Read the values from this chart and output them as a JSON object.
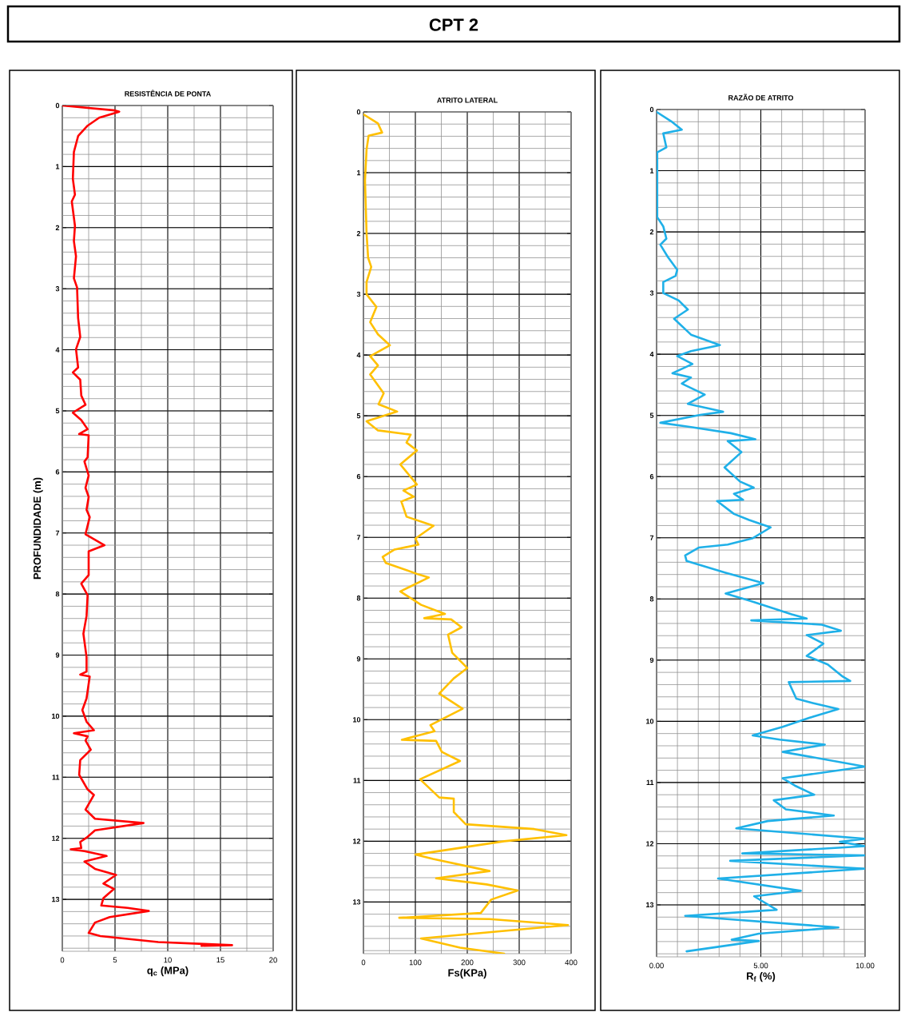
{
  "chart_data": [
    {
      "type": "line",
      "title": "RESISTÊNCIA DE PONTA",
      "xlabel": "q$_{c}$ (MPa)",
      "ylabel": "PROFUNDIDADE (m)",
      "annotations": [
        "CPT 2"
      ],
      "grid": true,
      "xlim": [
        0,
        20
      ],
      "xticks": [
        0,
        5,
        10,
        15,
        20
      ],
      "ylim": [
        13.85,
        0
      ],
      "yticks": [
        0,
        1,
        2,
        3,
        4,
        5,
        6,
        7,
        8,
        9,
        10,
        11,
        12,
        13
      ],
      "series": [
        {
          "color": "#ff0000",
          "x": [
            0,
            5.0,
            5.4,
            3.5,
            2.4,
            1.5,
            1.1,
            1.0,
            1.2,
            0.9,
            1.2,
            1.1,
            1.3,
            1.1,
            1.4,
            1.5,
            1.7,
            1.3,
            1.5,
            1.0,
            1.7,
            1.8,
            2.2,
            1.0,
            1.8,
            2.4,
            1.6,
            2.5,
            2.4,
            2.1,
            2.5,
            2.2,
            2.5,
            2.3,
            2.6,
            2.2,
            4.0,
            2.5,
            2.5,
            1.8,
            2.4,
            2.3,
            2.0,
            2.3,
            2.3,
            1.7,
            2.6,
            2.3,
            1.9,
            2.3,
            3.0,
            1.1,
            2.4,
            2.2,
            2.7,
            1.7,
            1.6,
            2.4,
            3.0,
            2.2,
            3.1,
            7.7,
            3.1,
            2.3,
            1.7,
            1.8,
            0.8,
            2.1,
            4.2,
            2.1,
            3.1,
            5.1,
            3.9,
            4.9,
            3.9,
            3.7,
            6.2,
            8.2,
            4.5,
            3.1,
            2.5,
            3.6,
            9.1,
            13.4,
            16.1,
            13.2
          ],
          "values": [
            0,
            0.08,
            0.1,
            0.2,
            0.33,
            0.5,
            0.76,
            1.2,
            1.46,
            1.57,
            1.97,
            2.22,
            2.47,
            2.83,
            2.98,
            3.48,
            3.79,
            3.99,
            4.29,
            4.37,
            4.49,
            4.75,
            4.9,
            5.03,
            5.15,
            5.3,
            5.38,
            5.4,
            5.76,
            5.83,
            6.06,
            6.26,
            6.41,
            6.62,
            6.74,
            7.02,
            7.2,
            7.3,
            7.69,
            7.83,
            8.02,
            8.36,
            8.65,
            9.03,
            9.27,
            9.32,
            9.35,
            9.71,
            9.9,
            10.09,
            10.23,
            10.28,
            10.33,
            10.4,
            10.55,
            10.72,
            10.96,
            11.2,
            11.29,
            11.53,
            11.68,
            11.75,
            11.87,
            11.99,
            12.06,
            12.16,
            12.18,
            12.21,
            12.29,
            12.38,
            12.5,
            12.6,
            12.74,
            12.83,
            12.98,
            13.1,
            13.14,
            13.19,
            13.29,
            13.38,
            13.55,
            13.6,
            13.7,
            13.73,
            13.75,
            13.76
          ]
        }
      ]
    },
    {
      "type": "line",
      "title": "ATRITO LATERAL",
      "xlabel": "Fs(KPa)",
      "grid": true,
      "xlim": [
        0,
        400
      ],
      "xticks": [
        0,
        100,
        200,
        300,
        400
      ],
      "ylim": [
        13.85,
        0
      ],
      "yticks": [
        0,
        1,
        2,
        3,
        4,
        5,
        6,
        7,
        8,
        9,
        10,
        11,
        12,
        13
      ],
      "series": [
        {
          "color": "#ffc000",
          "x": [
            0,
            28,
            36,
            10,
            6,
            3,
            6,
            9,
            15,
            6,
            6,
            25,
            13,
            28,
            51,
            13,
            28,
            13,
            39,
            29,
            65,
            6,
            28,
            91,
            83,
            103,
            71,
            103,
            77,
            97,
            73,
            83,
            135,
            100,
            106,
            60,
            37,
            43,
            106,
            126,
            71,
            111,
            157,
            117,
            169,
            189,
            163,
            171,
            200,
            174,
            146,
            191,
            129,
            137,
            74,
            140,
            151,
            186,
            109,
            146,
            174,
            174,
            197,
            329,
            391,
            271,
            100,
            134,
            243,
            140,
            237,
            297,
            246,
            226,
            69,
            243,
            394,
            111,
            186,
            271
          ],
          "values": [
            0.04,
            0.19,
            0.34,
            0.39,
            0.62,
            1.13,
            1.99,
            2.4,
            2.55,
            2.8,
            3.0,
            3.21,
            3.46,
            3.66,
            3.84,
            4.02,
            4.17,
            4.32,
            4.63,
            4.81,
            4.93,
            5.09,
            5.24,
            5.31,
            5.44,
            5.57,
            5.8,
            6.13,
            6.23,
            6.33,
            6.41,
            6.66,
            6.81,
            7.02,
            7.12,
            7.2,
            7.32,
            7.42,
            7.61,
            7.66,
            7.89,
            8.11,
            8.26,
            8.33,
            8.35,
            8.48,
            8.6,
            8.9,
            9.15,
            9.32,
            9.57,
            9.82,
            10.09,
            10.19,
            10.33,
            10.35,
            10.53,
            10.68,
            10.98,
            11.28,
            11.3,
            11.52,
            11.72,
            11.8,
            11.9,
            12.0,
            12.22,
            12.29,
            12.49,
            12.61,
            12.71,
            12.81,
            12.96,
            13.18,
            13.26,
            13.28,
            13.38,
            13.6,
            13.75,
            13.85
          ]
        }
      ]
    },
    {
      "type": "line",
      "title": "RAZÃO DE ATRITO",
      "xlabel": "R$_{f}$ (%)",
      "grid": true,
      "xlim": [
        0,
        10
      ],
      "xticks": [
        {
          "value": 0,
          "label": "0.00"
        },
        {
          "value": 5,
          "label": "5.00"
        },
        {
          "value": 10,
          "label": "10.00"
        }
      ],
      "ylim": [
        13.85,
        0
      ],
      "yticks": [
        0,
        1,
        2,
        3,
        4,
        5,
        6,
        7,
        8,
        9,
        10,
        11,
        12,
        13
      ],
      "series": [
        {
          "color": "#1fb0e8",
          "x": [
            0,
            0.69,
            1.21,
            0.32,
            0.47,
            0.03,
            0.03,
            0.32,
            0.47,
            0.18,
            0.54,
            0.99,
            0.91,
            0.32,
            0.32,
            1.06,
            1.5,
            0.84,
            1.65,
            3.04,
            1.65,
            0.99,
            1.72,
            0.76,
            1.65,
            1.21,
            2.31,
            1.5,
            3.19,
            2.09,
            0.18,
            1.65,
            3.56,
            4.74,
            3.41,
            4.07,
            3.26,
            4.0,
            4.66,
            3.71,
            4.15,
            2.9,
            3.71,
            4.44,
            5.47,
            4.59,
            3.41,
            2.02,
            1.37,
            1.44,
            3.31,
            5.12,
            3.31,
            4.47,
            6.48,
            7.2,
            4.54,
            7.93,
            8.84,
            7.2,
            8.0,
            7.2,
            8.21,
            8.93,
            9.29,
            6.34,
            6.7,
            7.49,
            8.72,
            7.35,
            6.05,
            4.61,
            5.91,
            8.07,
            6.05,
            10.0,
            6.05,
            6.63,
            7.56,
            5.62,
            6.2,
            8.5,
            5.33,
            3.82,
            10.0,
            8.79,
            10.0,
            4.11,
            10.0,
            3.53,
            10.0,
            2.95,
            6.92,
            4.68,
            5.76,
            1.37,
            8.72,
            4.9,
            3.6,
            4.9,
            1.44
          ],
          "values": [
            0.04,
            0.19,
            0.33,
            0.39,
            0.62,
            0.7,
            1.76,
            1.91,
            2.11,
            2.21,
            2.41,
            2.62,
            2.72,
            2.82,
            3.0,
            3.12,
            3.27,
            3.42,
            3.68,
            3.85,
            3.95,
            4.03,
            4.16,
            4.31,
            4.38,
            4.48,
            4.66,
            4.81,
            4.94,
            4.99,
            5.12,
            5.19,
            5.29,
            5.39,
            5.42,
            5.6,
            5.85,
            6.08,
            6.18,
            6.28,
            6.38,
            6.4,
            6.61,
            6.71,
            6.83,
            7.01,
            7.11,
            7.16,
            7.29,
            7.38,
            7.57,
            7.74,
            7.91,
            8.03,
            8.25,
            8.32,
            8.35,
            8.42,
            8.52,
            8.59,
            8.73,
            8.93,
            9.07,
            9.27,
            9.34,
            9.36,
            9.63,
            9.7,
            9.8,
            9.94,
            10.09,
            10.23,
            10.3,
            10.38,
            10.5,
            10.74,
            10.93,
            11.05,
            11.2,
            11.29,
            11.44,
            11.54,
            11.63,
            11.75,
            11.92,
            11.97,
            12.04,
            12.16,
            12.19,
            12.28,
            12.41,
            12.57,
            12.77,
            12.86,
            13.08,
            13.18,
            13.37,
            13.47,
            13.57,
            13.59,
            13.76
          ]
        }
      ]
    }
  ]
}
